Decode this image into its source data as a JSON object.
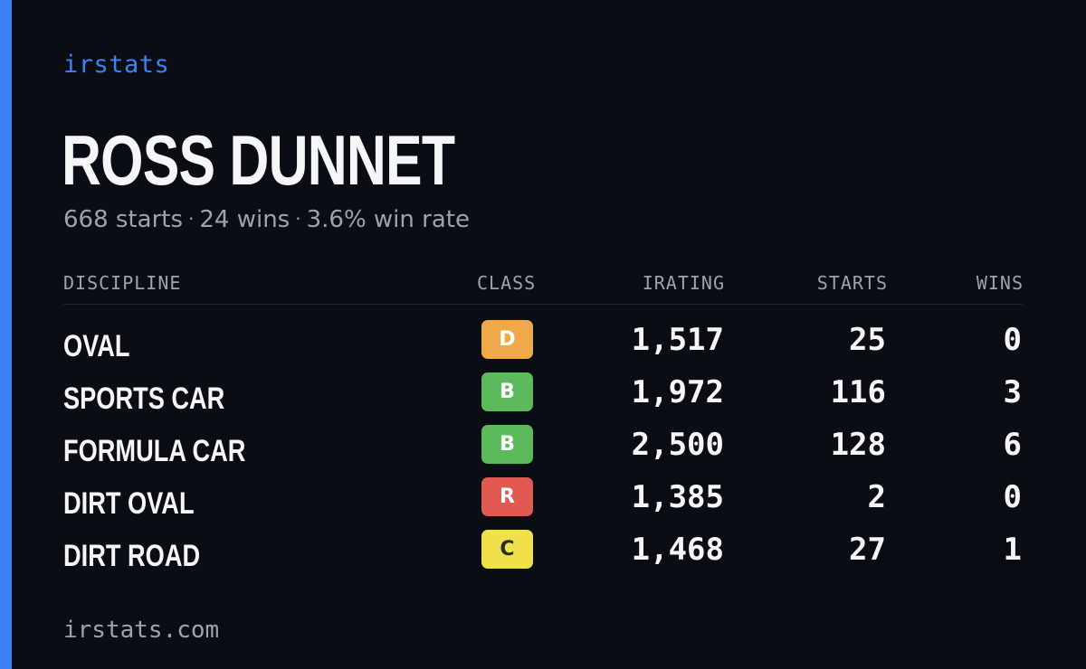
{
  "brand": "irstats",
  "driver_name": "ROSS DUNNET",
  "summary": {
    "starts": "668 starts",
    "wins": "24 wins",
    "win_rate": "3.6% win rate",
    "separator": "·"
  },
  "table": {
    "headers": {
      "discipline": "DISCIPLINE",
      "class": "CLASS",
      "irating": "IRATING",
      "starts": "STARTS",
      "wins": "WINS"
    },
    "rows": [
      {
        "discipline": "OVAL",
        "class": "D",
        "class_color": "#f0a94a",
        "class_text_color": "#ffffff",
        "irating": "1,517",
        "starts": "25",
        "wins": "0"
      },
      {
        "discipline": "SPORTS CAR",
        "class": "B",
        "class_color": "#5cba5c",
        "class_text_color": "#ffffff",
        "irating": "1,972",
        "starts": "116",
        "wins": "3"
      },
      {
        "discipline": "FORMULA CAR",
        "class": "B",
        "class_color": "#5cba5c",
        "class_text_color": "#ffffff",
        "irating": "2,500",
        "starts": "128",
        "wins": "6"
      },
      {
        "discipline": "DIRT OVAL",
        "class": "R",
        "class_color": "#e05a52",
        "class_text_color": "#ffffff",
        "irating": "1,385",
        "starts": "2",
        "wins": "0"
      },
      {
        "discipline": "DIRT ROAD",
        "class": "C",
        "class_color": "#f0e04a",
        "class_text_color": "#2a2a2a",
        "irating": "1,468",
        "starts": "27",
        "wins": "1"
      }
    ]
  },
  "footer": "irstats.com",
  "colors": {
    "background": "#0b0d14",
    "accent": "#3b82f6",
    "text_primary": "#f5f6f8",
    "text_muted": "#9aa3b2"
  }
}
